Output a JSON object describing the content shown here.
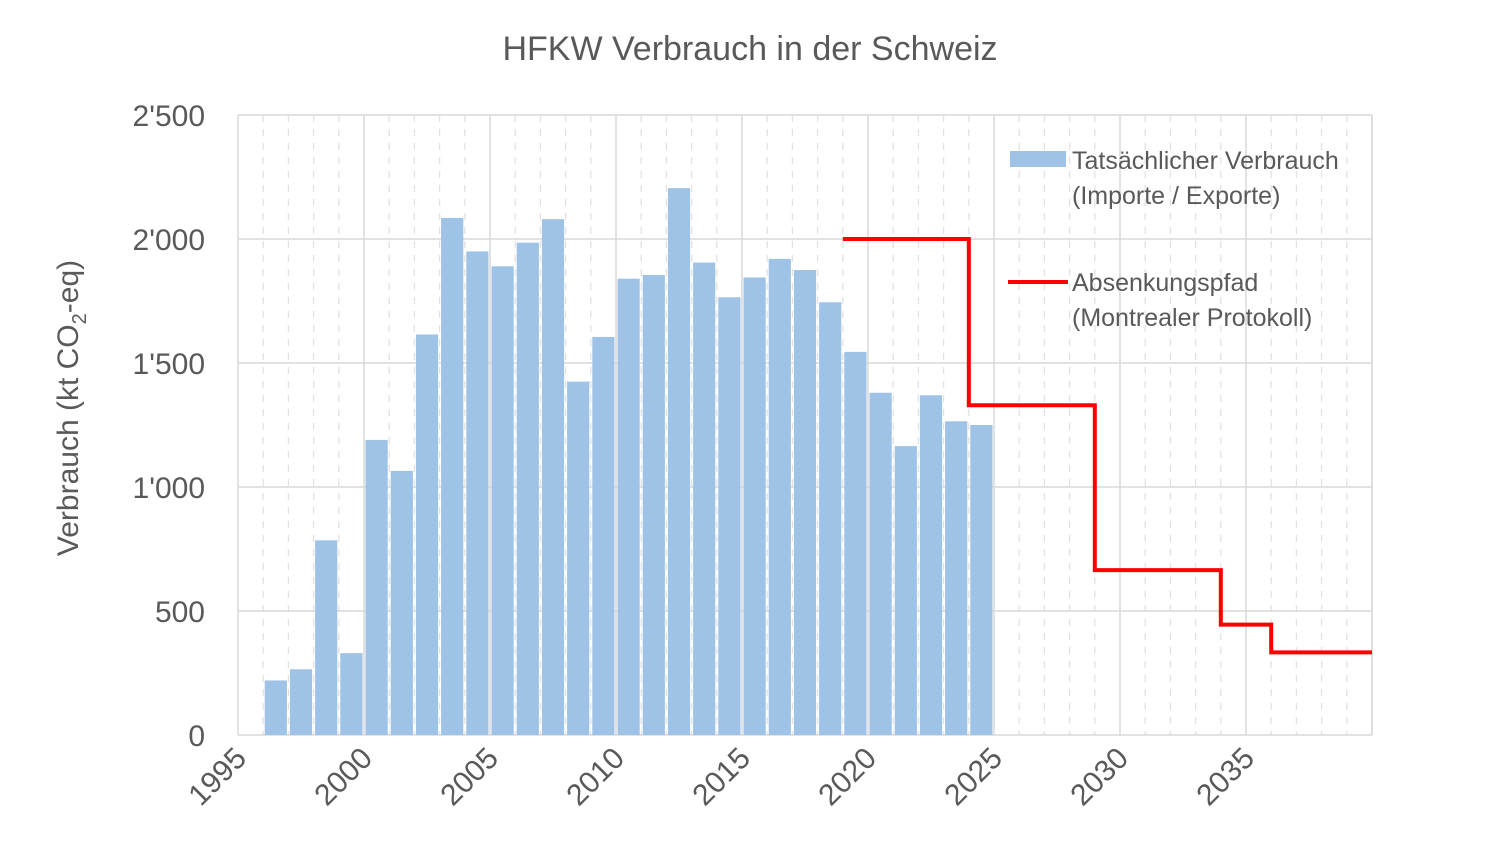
{
  "chart_data": {
    "type": "bar",
    "title": "HFKW Verbrauch in der Schweiz",
    "ylabel": "Verbrauch (kt CO",
    "ylabel_sub": "2",
    "ylabel_suffix": "-eq)",
    "xlabel": "",
    "xlim": [
      1995,
      2040
    ],
    "ylim": [
      0,
      2500
    ],
    "x_ticks": [
      1995,
      2000,
      2005,
      2010,
      2015,
      2020,
      2025,
      2030,
      2035
    ],
    "x_tick_labels": [
      "1995",
      "2000",
      "2005",
      "2010",
      "2015",
      "2020",
      "2025",
      "2030",
      "2035"
    ],
    "y_ticks": [
      0,
      500,
      1000,
      1500,
      2000,
      2500
    ],
    "y_tick_labels": [
      "0",
      "500",
      "1'000",
      "1'500",
      "2'000",
      "2'500"
    ],
    "grid": true,
    "legend_position": "top-right",
    "colors": {
      "bar": "#9fc3e7",
      "line": "#ff0000",
      "text": "#595959"
    },
    "series": [
      {
        "name": "Tatsächlicher Verbrauch",
        "name_line2": "(Importe / Exporte)",
        "type": "bar",
        "x": [
          1996,
          1997,
          1998,
          1999,
          2000,
          2001,
          2002,
          2003,
          2004,
          2005,
          2006,
          2007,
          2008,
          2009,
          2010,
          2011,
          2012,
          2013,
          2014,
          2015,
          2016,
          2017,
          2018,
          2019,
          2020,
          2021,
          2022,
          2023,
          2024
        ],
        "values": [
          220,
          265,
          785,
          330,
          1190,
          1065,
          1615,
          2085,
          1950,
          1890,
          1985,
          2080,
          1425,
          1605,
          1840,
          1855,
          2205,
          1905,
          1765,
          1845,
          1920,
          1875,
          1745,
          1545,
          1380,
          1165,
          1370,
          1265,
          1250
        ]
      },
      {
        "name": "Absenkungspfad",
        "name_line2": "(Montrealer Protokoll)",
        "type": "step-line",
        "x": [
          2019,
          2024,
          2024,
          2029,
          2029,
          2034,
          2034,
          2036,
          2036,
          2040
        ],
        "values": [
          2000,
          2000,
          1330,
          1330,
          665,
          665,
          445,
          445,
          333,
          333
        ]
      }
    ]
  }
}
